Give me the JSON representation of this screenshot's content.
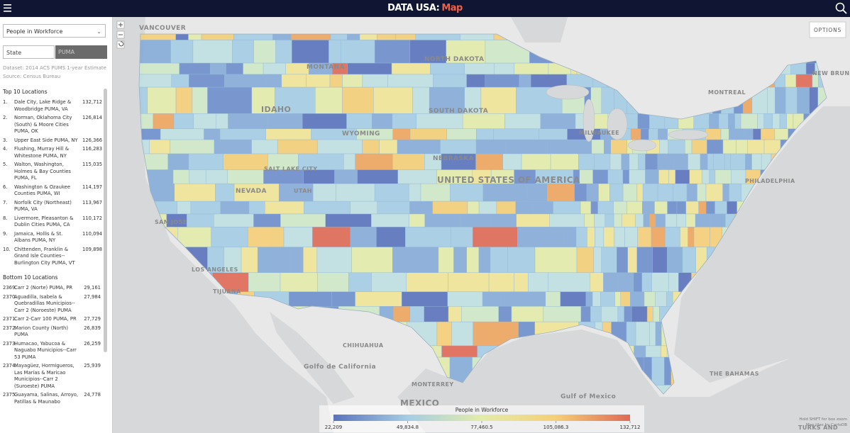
{
  "header": {
    "brand": "DATA USA:",
    "section": "Map"
  },
  "sidebar": {
    "metric": "People in Workforce",
    "toggles": [
      "State",
      "PUMA"
    ],
    "dataset": "Dataset: 2014 ACS PUMS 1-year Estimate",
    "source": "Source: Census Bureau",
    "top": {
      "title": "Top 10 Locations",
      "items": [
        {
          "rank": "1.",
          "name": "Dale City, Lake Ridge & Woodbridge PUMA, VA",
          "value": "132,712"
        },
        {
          "rank": "2.",
          "name": "Norman, Oklahoma City (South) & Moore Cities PUMA, OK",
          "value": "126,814"
        },
        {
          "rank": "3.",
          "name": "Upper East Side PUMA, NY",
          "value": "126,366"
        },
        {
          "rank": "4.",
          "name": "Flushing, Murray Hill & Whitestone PUMA, NY",
          "value": "116,283"
        },
        {
          "rank": "5.",
          "name": "Walton, Washington, Holmes & Bay Counties PUMA, FL",
          "value": "115,035"
        },
        {
          "rank": "6.",
          "name": "Washington & Ozaukee Counties PUMA, WI",
          "value": "114,197"
        },
        {
          "rank": "7.",
          "name": "Norfolk City (Northeast) PUMA, VA",
          "value": "113,967"
        },
        {
          "rank": "8.",
          "name": "Livermore, Pleasanton & Dublin Cities PUMA, CA",
          "value": "110,172"
        },
        {
          "rank": "9.",
          "name": "Jamaica, Hollis & St. Albans PUMA, NY",
          "value": "110,094"
        },
        {
          "rank": "10.",
          "name": "Chittenden, Franklin & Grand Isle Counties--Burlington City PUMA, VT",
          "value": "109,898"
        }
      ]
    },
    "bottom": {
      "title": "Bottom 10 Locations",
      "items": [
        {
          "rank": "2369.",
          "name": "Carr 2 (Norte) PUMA, PR",
          "value": "29,161"
        },
        {
          "rank": "2370.",
          "name": "Aguadilla, Isabela & Quebradillas Municipios--Carr 2 (Noroeste) PUMA",
          "value": "27,984"
        },
        {
          "rank": "2371.",
          "name": "Carr 2-Carr 100 PUMA, PR",
          "value": "27,729"
        },
        {
          "rank": "2372.",
          "name": "Marion County (North) PUMA",
          "value": "26,839"
        },
        {
          "rank": "2373.",
          "name": "Humacao, Yabucoa & Naguabo Municipios--Carr 53 PUMA",
          "value": "26,259"
        },
        {
          "rank": "2374.",
          "name": "Mayagüez, Hormigueros, Las Marías & Maricao Municipios--Carr 2 (Suroeste) PUMA",
          "value": "25,939"
        },
        {
          "rank": "2375.",
          "name": "Guayama, Salinas, Arroyo, Patillas & Maunabo",
          "value": "24,778"
        }
      ]
    }
  },
  "map": {
    "options": "OPTIONS",
    "places": [
      "VANCOUVER",
      "MONTANA",
      "NORTH DAKOTA",
      "IDAHO",
      "WYOMING",
      "SOUTH DAKOTA",
      "NEBRASKA",
      "UNITED STATES OF AMERICA",
      "NEVADA",
      "UTAH",
      "SALT LAKE CITY",
      "SAN JOSE",
      "LOS ANGELES",
      "TIJUANA",
      "CHIHUAHUA",
      "MONTERREY",
      "MEXICO",
      "Golfo de California",
      "Gulf of Mexico",
      "THE BAHAMAS",
      "MONTREAL",
      "NEW BRUNSWICK",
      "MILWAUKEE",
      "PHILADELPHIA",
      "TURKS AND"
    ],
    "legend": {
      "title": "People in Workforce",
      "ticks": [
        "22,209",
        "49,834.8",
        "77,460.5",
        "105,086.3",
        "132,712"
      ]
    },
    "note": "Hold SHIFT for box zoom",
    "credit": "Map tiles by CartoDB"
  }
}
